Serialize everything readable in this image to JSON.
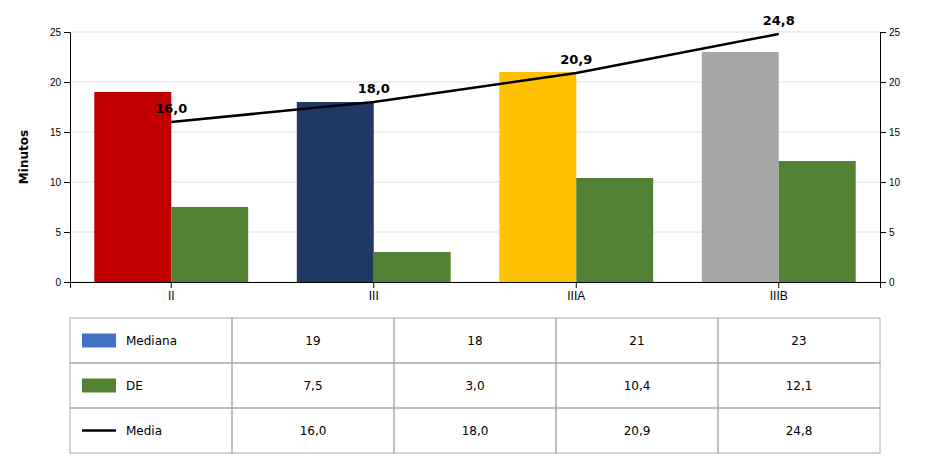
{
  "chart_data": {
    "type": "bar",
    "categories": [
      "II",
      "III",
      "IIIA",
      "IIIB"
    ],
    "series": [
      {
        "name": "Mediana",
        "type": "bar",
        "color": "#4472c4",
        "colors": [
          "#c00000",
          "#1f3864",
          "#ffc000",
          "#a6a6a6"
        ],
        "values": [
          19,
          18,
          21,
          23
        ],
        "value_labels": [
          "19",
          "18",
          "21",
          "23"
        ]
      },
      {
        "name": "DE",
        "type": "bar",
        "color": "#548235",
        "values": [
          7.5,
          3.0,
          10.4,
          12.1
        ],
        "value_labels": [
          "7,5",
          "3,0",
          "10,4",
          "12,1"
        ]
      },
      {
        "name": "Media",
        "type": "line",
        "axis": "y2",
        "color": "#000000",
        "values": [
          16.0,
          18.0,
          20.9,
          24.8
        ],
        "value_labels": [
          "16,0",
          "18,0",
          "20,9",
          "24,8"
        ],
        "data_labels": true
      }
    ],
    "ylabel": "Minutos",
    "ylim": [
      0,
      25
    ],
    "yticks": [
      0,
      5,
      10,
      15,
      20,
      25
    ],
    "y2lim": [
      0,
      25
    ],
    "y2ticks": [
      0,
      5,
      10,
      15,
      20,
      25
    ],
    "grid": true,
    "legend": "bottom"
  }
}
